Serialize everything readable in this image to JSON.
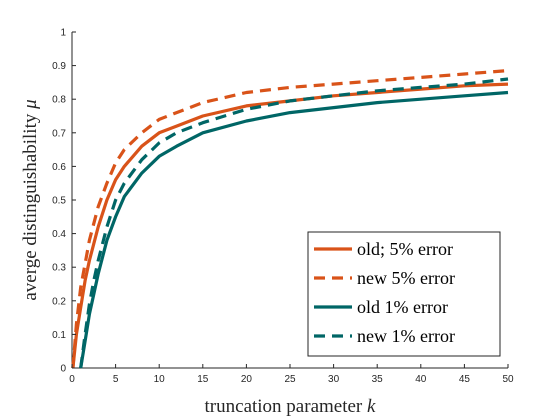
{
  "chart_data": {
    "type": "line",
    "title": "",
    "xlabel": "truncation parameter ",
    "xlabel_var": "k",
    "ylabel": "averge distinguishability ",
    "ylabel_var": "μ",
    "xlim": [
      0,
      50
    ],
    "ylim": [
      0,
      1
    ],
    "xticks": [
      0,
      5,
      10,
      15,
      20,
      25,
      30,
      35,
      40,
      45,
      50
    ],
    "yticks": [
      0,
      0.1,
      0.2,
      0.3,
      0.4,
      0.5,
      0.6,
      0.7,
      0.8,
      0.9,
      1
    ],
    "ytick_labels": [
      "0",
      "0.1",
      "0.2",
      "0.3",
      "0.4",
      "0.5",
      "0.6",
      "0.7",
      "0.8",
      "0.9",
      "1"
    ],
    "grid": false,
    "legend_position": "bottom-right",
    "series": [
      {
        "name": "old; 5% error",
        "color": "#d95319",
        "dash": "solid",
        "x": [
          0.1,
          0.5,
          1,
          1.5,
          2,
          3,
          4,
          5,
          6,
          8,
          10,
          12,
          15,
          20,
          25,
          30,
          35,
          40,
          45,
          50
        ],
        "y": [
          0,
          0.1,
          0.18,
          0.26,
          0.32,
          0.42,
          0.5,
          0.56,
          0.6,
          0.66,
          0.7,
          0.72,
          0.75,
          0.78,
          0.795,
          0.81,
          0.82,
          0.83,
          0.84,
          0.845
        ]
      },
      {
        "name": "new 5% error",
        "color": "#d95319",
        "dash": "dashed",
        "x": [
          0.1,
          0.5,
          1,
          1.5,
          2,
          3,
          4,
          5,
          6,
          8,
          10,
          12,
          15,
          20,
          25,
          30,
          35,
          40,
          45,
          50
        ],
        "y": [
          0,
          0.13,
          0.24,
          0.31,
          0.38,
          0.48,
          0.55,
          0.61,
          0.65,
          0.7,
          0.74,
          0.76,
          0.79,
          0.82,
          0.835,
          0.845,
          0.855,
          0.865,
          0.875,
          0.885
        ]
      },
      {
        "name": "old 1% error",
        "color": "#006666",
        "dash": "solid",
        "x": [
          1,
          1.5,
          2,
          2.5,
          3,
          4,
          5,
          6,
          8,
          10,
          12,
          15,
          20,
          25,
          30,
          35,
          40,
          45,
          50
        ],
        "y": [
          0,
          0.08,
          0.16,
          0.22,
          0.28,
          0.38,
          0.45,
          0.51,
          0.58,
          0.63,
          0.66,
          0.7,
          0.735,
          0.76,
          0.775,
          0.79,
          0.8,
          0.81,
          0.82
        ]
      },
      {
        "name": "new 1% error",
        "color": "#006666",
        "dash": "dashed",
        "x": [
          1,
          1.5,
          2,
          2.5,
          3,
          4,
          5,
          6,
          8,
          10,
          12,
          15,
          20,
          25,
          30,
          35,
          40,
          45,
          50
        ],
        "y": [
          0,
          0.1,
          0.19,
          0.26,
          0.32,
          0.42,
          0.5,
          0.55,
          0.62,
          0.67,
          0.7,
          0.73,
          0.77,
          0.795,
          0.81,
          0.825,
          0.835,
          0.845,
          0.86
        ]
      }
    ]
  }
}
